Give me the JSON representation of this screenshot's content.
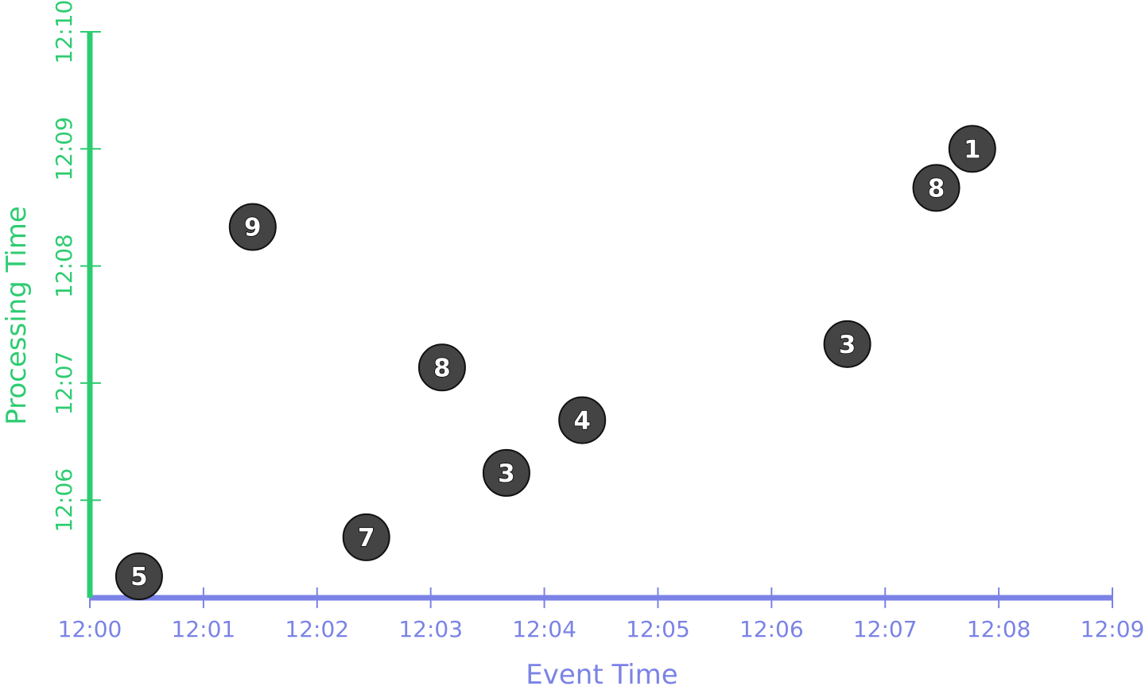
{
  "chart_data": {
    "type": "scatter",
    "title": "",
    "xlabel": "Event Time",
    "ylabel": "Processing Time",
    "x_ticks": [
      "12:00",
      "12:01",
      "12:02",
      "12:03",
      "12:04",
      "12:05",
      "12:06",
      "12:07",
      "12:08",
      "12:09"
    ],
    "y_ticks": [
      "12:06",
      "12:07",
      "12:08",
      "12:09",
      "12:10"
    ],
    "xlim": [
      "12:00",
      "12:09"
    ],
    "ylim": [
      "12:05:10",
      "12:10"
    ],
    "grid": false,
    "legend": "none",
    "colors": {
      "x_axis": "#7b83e6",
      "y_axis": "#2ecc71",
      "point_fill": "#444444",
      "point_stroke": "#111111",
      "point_text": "#ffffff"
    },
    "points": [
      {
        "label": "5",
        "x": "12:00:26",
        "y": "12:05:21"
      },
      {
        "label": "9",
        "x": "12:01:26",
        "y": "12:08:20"
      },
      {
        "label": "7",
        "x": "12:02:26",
        "y": "12:05:41"
      },
      {
        "label": "8",
        "x": "12:03:06",
        "y": "12:07:08"
      },
      {
        "label": "3",
        "x": "12:03:40",
        "y": "12:06:14"
      },
      {
        "label": "4",
        "x": "12:04:20",
        "y": "12:06:41"
      },
      {
        "label": "3",
        "x": "12:06:40",
        "y": "12:07:20"
      },
      {
        "label": "8",
        "x": "12:07:27",
        "y": "12:08:40"
      },
      {
        "label": "1",
        "x": "12:07:46",
        "y": "12:09:00"
      }
    ]
  }
}
